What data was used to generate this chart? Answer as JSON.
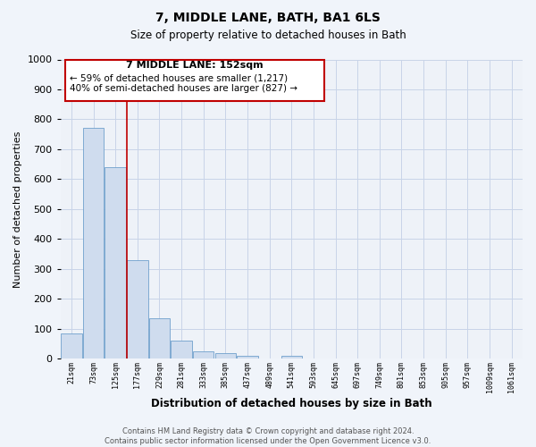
{
  "title": "7, MIDDLE LANE, BATH, BA1 6LS",
  "subtitle": "Size of property relative to detached houses in Bath",
  "xlabel": "Distribution of detached houses by size in Bath",
  "ylabel": "Number of detached properties",
  "bar_labels": [
    "21sqm",
    "73sqm",
    "125sqm",
    "177sqm",
    "229sqm",
    "281sqm",
    "333sqm",
    "385sqm",
    "437sqm",
    "489sqm",
    "541sqm",
    "593sqm",
    "645sqm",
    "697sqm",
    "749sqm",
    "801sqm",
    "853sqm",
    "905sqm",
    "957sqm",
    "1009sqm",
    "1061sqm"
  ],
  "bar_values": [
    85,
    770,
    640,
    330,
    135,
    60,
    25,
    18,
    10,
    0,
    10,
    0,
    0,
    0,
    0,
    0,
    0,
    0,
    0,
    0,
    0
  ],
  "bar_color": "#cfdcee",
  "bar_edge_color": "#6fa0cc",
  "vline_x": 2.5,
  "vline_color": "#c00000",
  "annotation_title": "7 MIDDLE LANE: 152sqm",
  "annotation_line1": "← 59% of detached houses are smaller (1,217)",
  "annotation_line2": "40% of semi-detached houses are larger (827) →",
  "annotation_box_color": "#c00000",
  "ylim": [
    0,
    1000
  ],
  "yticks": [
    0,
    100,
    200,
    300,
    400,
    500,
    600,
    700,
    800,
    900,
    1000
  ],
  "footer_line1": "Contains HM Land Registry data © Crown copyright and database right 2024.",
  "footer_line2": "Contains public sector information licensed under the Open Government Licence v3.0.",
  "background_color": "#f0f4fa",
  "plot_bg_color": "#eef2f8",
  "grid_color": "#c8d4e8"
}
